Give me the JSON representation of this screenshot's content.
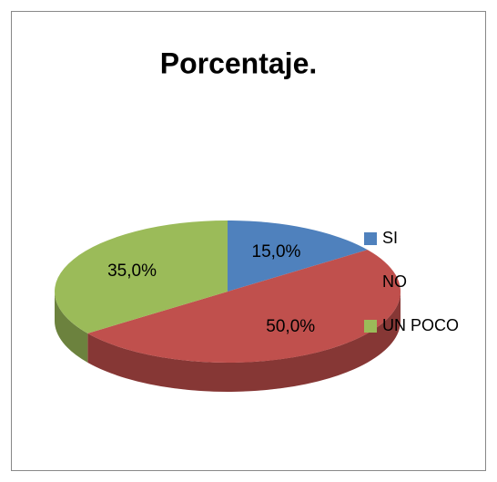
{
  "chart_data": {
    "type": "pie",
    "title": "Porcentaje.",
    "categories": [
      "SI",
      "NO",
      "UN  POCO"
    ],
    "values": [
      15,
      50,
      35
    ],
    "value_labels": [
      "15,0%",
      "50,0%",
      "35,0%"
    ],
    "colors": [
      "#4f81bd",
      "#c0504d",
      "#9bbb59"
    ],
    "legend": "right"
  }
}
